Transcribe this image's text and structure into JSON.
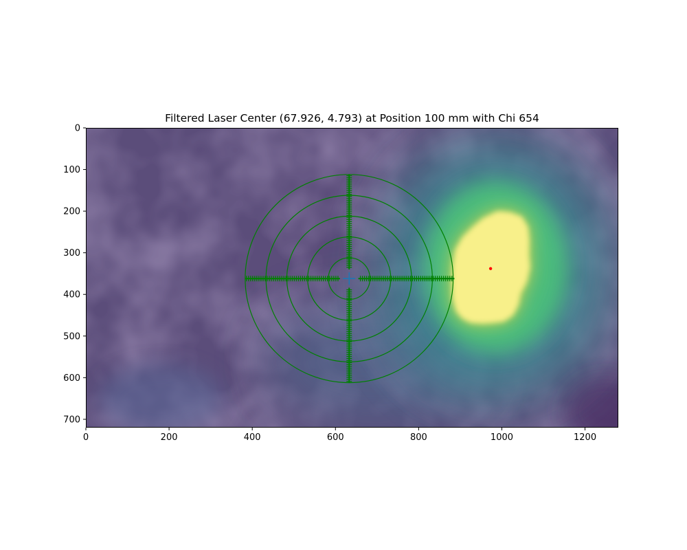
{
  "chart_data": {
    "type": "heatmap",
    "title": "Filtered Laser Center (67.926, 4.793) at Position 100 mm with Chi 654",
    "xlabel": "",
    "ylabel": "",
    "xlim": [
      0,
      1280
    ],
    "ylim": [
      720,
      0
    ],
    "x_ticks": [
      0,
      200,
      400,
      600,
      800,
      1000,
      1200
    ],
    "y_ticks": [
      0,
      100,
      200,
      300,
      400,
      500,
      600,
      700
    ],
    "x_tick_labels": [
      "0",
      "200",
      "400",
      "600",
      "800",
      "1000",
      "1200"
    ],
    "y_tick_labels": [
      "0",
      "100",
      "200",
      "300",
      "400",
      "500",
      "600",
      "700"
    ],
    "colormap": "viridis",
    "grid": false,
    "laser_spot": {
      "center": [
        985,
        340
      ],
      "outline": [
        [
          990,
          200
        ],
        [
          1020,
          203
        ],
        [
          1048,
          213
        ],
        [
          1063,
          238
        ],
        [
          1066,
          270
        ],
        [
          1065,
          305
        ],
        [
          1068,
          335
        ],
        [
          1060,
          370
        ],
        [
          1045,
          398
        ],
        [
          1040,
          425
        ],
        [
          1027,
          450
        ],
        [
          1005,
          465
        ],
        [
          980,
          468
        ],
        [
          955,
          470
        ],
        [
          925,
          468
        ],
        [
          905,
          458
        ],
        [
          890,
          440
        ],
        [
          882,
          410
        ],
        [
          880,
          370
        ],
        [
          882,
          330
        ],
        [
          888,
          293
        ],
        [
          905,
          263
        ],
        [
          930,
          238
        ],
        [
          955,
          217
        ]
      ]
    },
    "red_point": {
      "x": 973,
      "y": 338,
      "color": "#ff0000"
    },
    "target": {
      "center": [
        633,
        362
      ],
      "ring_radii": [
        50,
        100,
        150,
        200,
        250
      ],
      "color": "#008000",
      "tick_spacing": 5,
      "center_marker_color": "#1f77b4"
    },
    "colors": {
      "background_purple": "#5b4d7a",
      "hot_yellow": "#f8f08a",
      "halo_green": "#4cc27a",
      "halo_teal": "#3a8f94"
    }
  }
}
